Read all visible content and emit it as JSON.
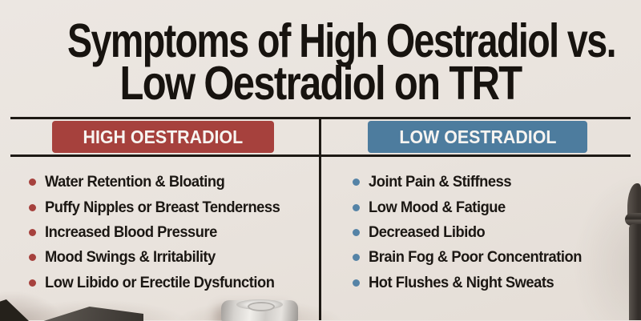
{
  "page": {
    "title_line1": "Symptoms of High Oestradiol vs.",
    "title_line2": "Low Oestradiol on TRT"
  },
  "columns": [
    {
      "id": "high-oestradiol",
      "header": "HIGH OESTRADIOL",
      "accent": "#a6413d",
      "items": [
        "Water Retention & Bloating",
        "Puffy Nipples or Breast Tenderness",
        "Increased Blood Pressure",
        "Mood Swings & Irritability",
        "Low Libido or Erectile Dysfunction"
      ]
    },
    {
      "id": "low-oestradiol",
      "header": "LOW OESTRADIOL",
      "accent": "#4d7c9e",
      "items": [
        "Joint Pain & Stiffness",
        "Low Mood & Fatigue",
        "Decreased Libido",
        "Brain Fog & Poor Concentration",
        "Hot Flushes & Night Sweats"
      ]
    }
  ],
  "colors": {
    "background": "#e9e3dd",
    "text": "#1b1713",
    "rule": "#1d1914",
    "high_accent": "#a6413d",
    "low_accent": "#4d7c9e",
    "high_bullet": "#a6413d",
    "low_bullet": "#5583a6"
  }
}
